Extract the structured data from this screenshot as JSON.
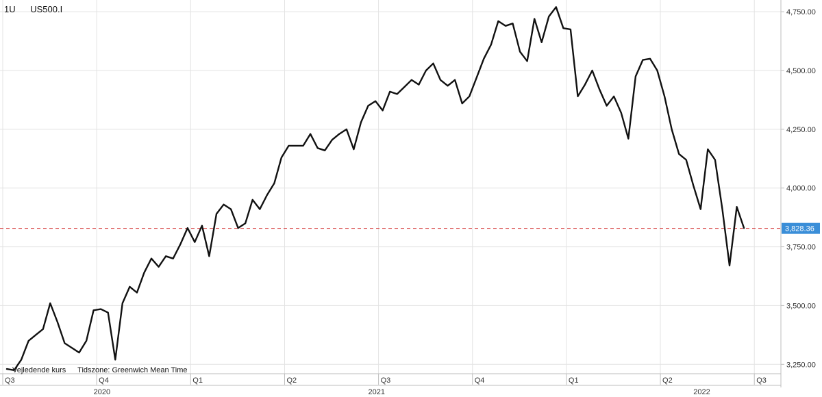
{
  "header": {
    "interval": "1U",
    "symbol": "US500.I"
  },
  "footer": {
    "price_type": "Vejledende kurs",
    "timezone": "Tidszone: Greenwich Mean Time"
  },
  "colors": {
    "line": "#111111",
    "reference": "#d32f2f",
    "badge": "#3a8ed8",
    "grid": "#e3e3e3"
  },
  "chart_data": {
    "type": "line",
    "title": "",
    "xlabel": "",
    "ylabel": "",
    "ylim": [
      3210,
      4800
    ],
    "y_ticks": [
      {
        "value": 3250,
        "label": "3,250.00"
      },
      {
        "value": 3500,
        "label": "3,500.00"
      },
      {
        "value": 3750,
        "label": "3,750.00"
      },
      {
        "value": 4000,
        "label": "4,000.00"
      },
      {
        "value": 4250,
        "label": "4,250.00"
      },
      {
        "value": 4500,
        "label": "4,500.00"
      },
      {
        "value": 4750,
        "label": "4,750.00"
      }
    ],
    "x_ticks": [
      {
        "t": 0,
        "label": "Q3"
      },
      {
        "t": 13,
        "label": "Q4"
      },
      {
        "t": 26,
        "label": "Q1"
      },
      {
        "t": 39,
        "label": "Q2"
      },
      {
        "t": 52,
        "label": "Q3"
      },
      {
        "t": 65,
        "label": "Q4"
      },
      {
        "t": 78,
        "label": "Q1"
      },
      {
        "t": 91,
        "label": "Q2"
      },
      {
        "t": 104,
        "label": "Q3"
      }
    ],
    "years": [
      {
        "t": 12,
        "label": "2020"
      },
      {
        "t": 50,
        "label": "2021"
      },
      {
        "t": 95,
        "label": "2022"
      }
    ],
    "xlim": [
      0,
      108
    ],
    "grid": true,
    "last_value": 3828.36,
    "last_value_label": "3,828.36",
    "series": [
      {
        "values": [
          3230,
          3225,
          3270,
          3350,
          3375,
          3400,
          3510,
          3430,
          3340,
          3320,
          3300,
          3350,
          3480,
          3485,
          3470,
          3270,
          3510,
          3580,
          3555,
          3640,
          3700,
          3665,
          3710,
          3700,
          3760,
          3830,
          3770,
          3840,
          3710,
          3890,
          3930,
          3910,
          3830,
          3850,
          3950,
          3910,
          3970,
          4020,
          4130,
          4180,
          4180,
          4180,
          4230,
          4170,
          4160,
          4205,
          4230,
          4250,
          4165,
          4280,
          4350,
          4370,
          4330,
          4410,
          4400,
          4430,
          4460,
          4440,
          4500,
          4530,
          4460,
          4435,
          4460,
          4360,
          4390,
          4470,
          4550,
          4610,
          4710,
          4690,
          4700,
          4580,
          4540,
          4720,
          4620,
          4730,
          4770,
          4680,
          4675,
          4390,
          4440,
          4500,
          4420,
          4350,
          4390,
          4320,
          4210,
          4475,
          4545,
          4550,
          4500,
          4390,
          4250,
          4145,
          4120,
          4010,
          3910,
          4165,
          4120,
          3910,
          3670,
          3920,
          3830
        ]
      }
    ]
  }
}
